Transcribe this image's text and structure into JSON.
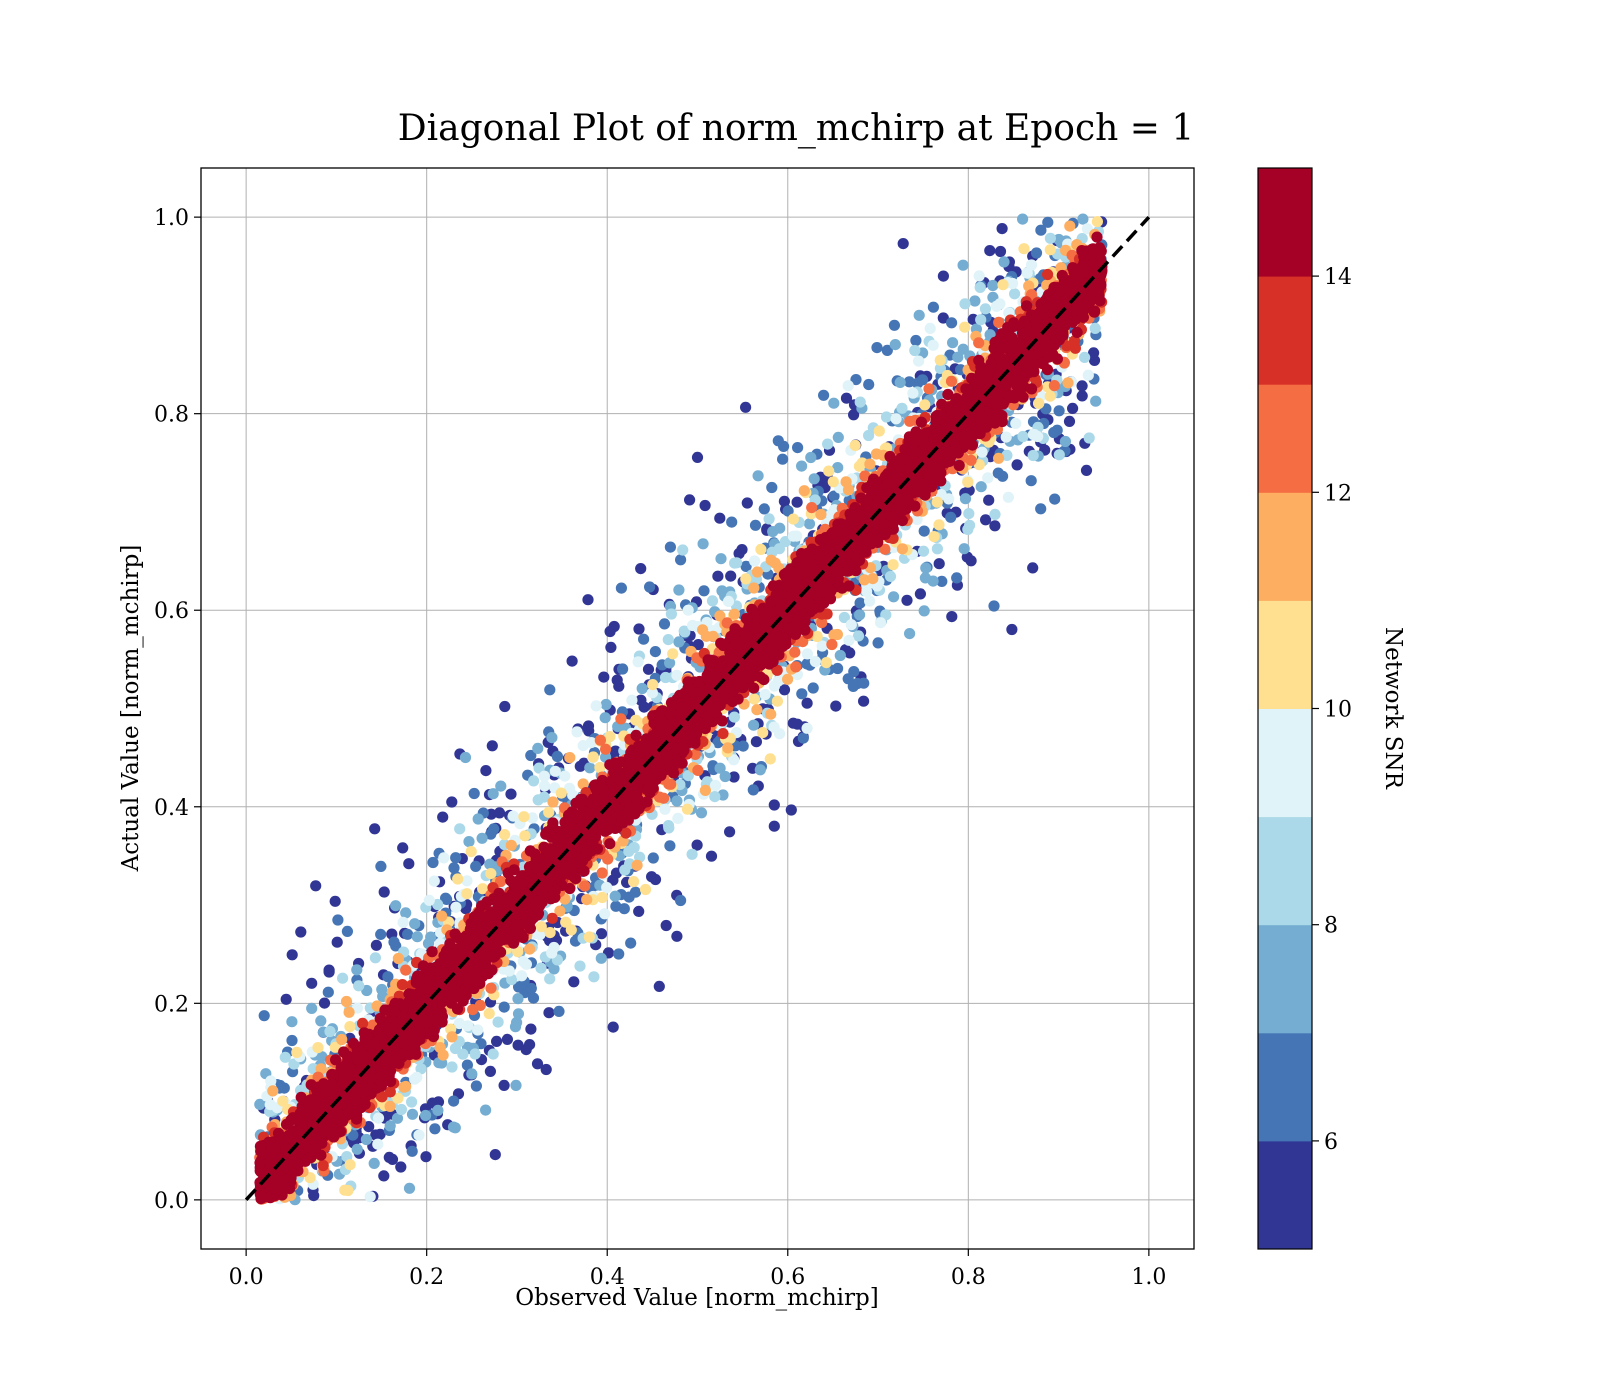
{
  "chart_data": {
    "type": "scatter",
    "title": "Diagonal Plot of norm_mchirp at Epoch = 1",
    "xlabel": "Observed Value [norm_mchirp]",
    "ylabel": "Actual Value [norm_mchirp]",
    "xlim": [
      -0.05,
      1.05
    ],
    "ylim": [
      -0.05,
      1.05
    ],
    "xticks": [
      "0.0",
      "0.2",
      "0.4",
      "0.6",
      "0.8",
      "1.0"
    ],
    "yticks": [
      "0.0",
      "0.2",
      "0.4",
      "0.6",
      "0.8",
      "1.0"
    ],
    "xtick_values": [
      0.0,
      0.2,
      0.4,
      0.6,
      0.8,
      1.0
    ],
    "ytick_values": [
      0.0,
      0.2,
      0.4,
      0.6,
      0.8,
      1.0
    ],
    "grid": true,
    "reference_line": {
      "from": [
        0,
        0
      ],
      "to": [
        1,
        1
      ],
      "style": "dashed",
      "color": "#000000"
    },
    "observed_range": [
      0.0,
      0.95
    ],
    "colorbar": {
      "label": "Network SNR",
      "range": [
        5,
        15
      ],
      "ticks": [
        "6",
        "8",
        "10",
        "12",
        "14"
      ],
      "tick_values": [
        6,
        8,
        10,
        12,
        14
      ],
      "colormap": "RdYlBu_r (10 discrete levels)",
      "colors": [
        "#313695",
        "#4575b4",
        "#74add1",
        "#abd9e9",
        "#e0f3f8",
        "#fee090",
        "#fdae61",
        "#f46d43",
        "#d73027",
        "#a50026"
      ]
    },
    "points_description": "dense scatter; high SNR points concentrated near the diagonal, low SNR points spread far from it"
  }
}
